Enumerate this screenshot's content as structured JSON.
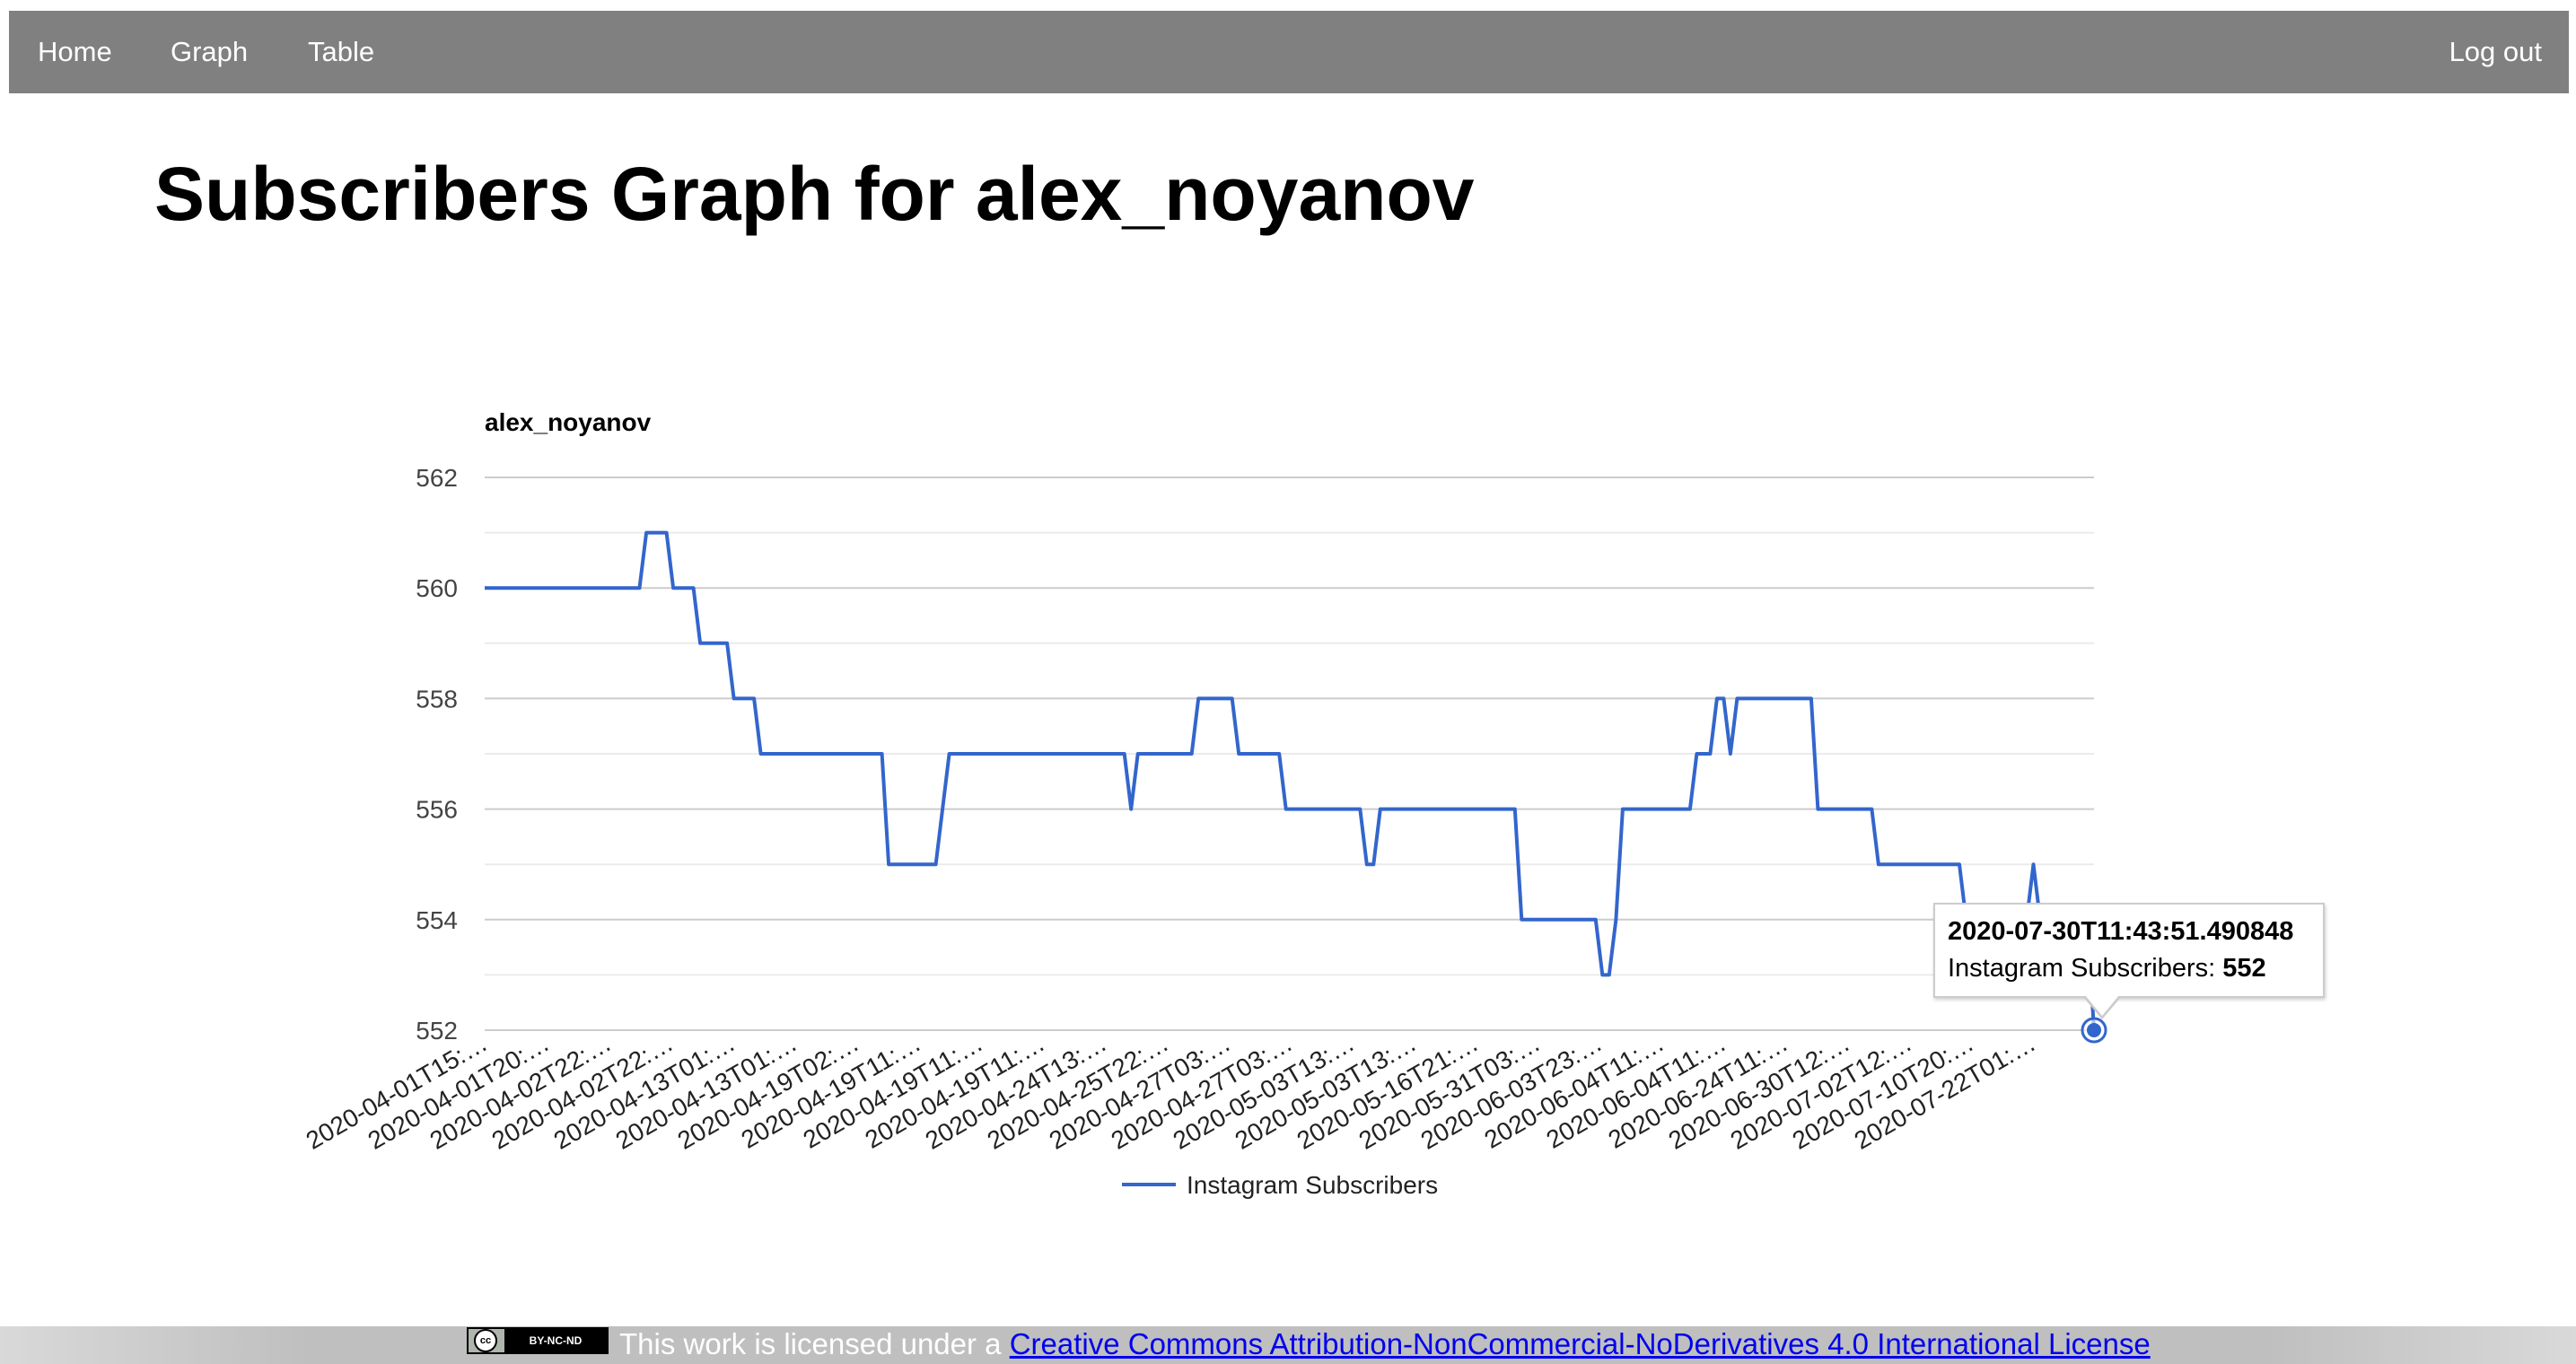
{
  "nav": {
    "home": "Home",
    "graph": "Graph",
    "table": "Table",
    "logout": "Log out"
  },
  "page_title": "Subscribers Graph for alex_noyanov",
  "chart_data": {
    "type": "line",
    "title": "alex_noyanov",
    "xlabel": "",
    "ylabel": "",
    "ylim": [
      552,
      562
    ],
    "yticks": [
      552,
      554,
      556,
      558,
      560,
      562
    ],
    "grid": true,
    "legend_position": "bottom",
    "x_tick_labels": [
      "2020-04-01T15:…",
      "2020-04-01T20:…",
      "2020-04-02T22:…",
      "2020-04-02T22:…",
      "2020-04-13T01:…",
      "2020-04-13T01:…",
      "2020-04-19T02:…",
      "2020-04-19T11:…",
      "2020-04-19T11:…",
      "2020-04-19T11:…",
      "2020-04-24T13:…",
      "2020-04-25T22:…",
      "2020-04-27T03:…",
      "2020-04-27T03:…",
      "2020-05-03T13:…",
      "2020-05-03T13:…",
      "2020-05-16T21:…",
      "2020-05-31T03:…",
      "2020-06-03T23:…",
      "2020-06-04T11:…",
      "2020-06-04T11:…",
      "2020-06-24T11:…",
      "2020-06-30T12:…",
      "2020-07-02T12:…",
      "2020-07-10T20:…",
      "2020-07-22T01:…"
    ],
    "series": [
      {
        "name": "Instagram Subscribers",
        "color": "#3366cc",
        "values": [
          560,
          560,
          560,
          560,
          560,
          560,
          560,
          560,
          560,
          560,
          560,
          560,
          560,
          560,
          560,
          560,
          560,
          560,
          560,
          560,
          560,
          560,
          560,
          560,
          561,
          561,
          561,
          561,
          560,
          560,
          560,
          560,
          559,
          559,
          559,
          559,
          559,
          558,
          558,
          558,
          558,
          557,
          557,
          557,
          557,
          557,
          557,
          557,
          557,
          557,
          557,
          557,
          557,
          557,
          557,
          557,
          557,
          557,
          557,
          557,
          555,
          555,
          555,
          555,
          555,
          555,
          555,
          555,
          556,
          557,
          557,
          557,
          557,
          557,
          557,
          557,
          557,
          557,
          557,
          557,
          557,
          557,
          557,
          557,
          557,
          557,
          557,
          557,
          557,
          557,
          557,
          557,
          557,
          557,
          557,
          557,
          556,
          557,
          557,
          557,
          557,
          557,
          557,
          557,
          557,
          557,
          558,
          558,
          558,
          558,
          558,
          558,
          557,
          557,
          557,
          557,
          557,
          557,
          557,
          556,
          556,
          556,
          556,
          556,
          556,
          556,
          556,
          556,
          556,
          556,
          556,
          555,
          555,
          556,
          556,
          556,
          556,
          556,
          556,
          556,
          556,
          556,
          556,
          556,
          556,
          556,
          556,
          556,
          556,
          556,
          556,
          556,
          556,
          556,
          554,
          554,
          554,
          554,
          554,
          554,
          554,
          554,
          554,
          554,
          554,
          554,
          553,
          553,
          554,
          556,
          556,
          556,
          556,
          556,
          556,
          556,
          556,
          556,
          556,
          556,
          557,
          557,
          557,
          558,
          558,
          557,
          558,
          558,
          558,
          558,
          558,
          558,
          558,
          558,
          558,
          558,
          558,
          558,
          556,
          556,
          556,
          556,
          556,
          556,
          556,
          556,
          556,
          555,
          555,
          555,
          555,
          555,
          555,
          555,
          555,
          555,
          555,
          555,
          555,
          555,
          554,
          554,
          554,
          554,
          554,
          554,
          554,
          554,
          554,
          554,
          555,
          554,
          554,
          554,
          554,
          554,
          554,
          554,
          554,
          552
        ]
      }
    ],
    "highlighted_point": {
      "x_label": "2020-07-30T11:43:51.490848",
      "series_label": "Instagram Subscribers: ",
      "value": "552"
    }
  },
  "footer": {
    "badge_text": "BY-NC-ND",
    "text": "This work is licensed under a ",
    "link_text": "Creative Commons Attribution-NonCommercial-NoDerivatives 4.0 International License"
  }
}
